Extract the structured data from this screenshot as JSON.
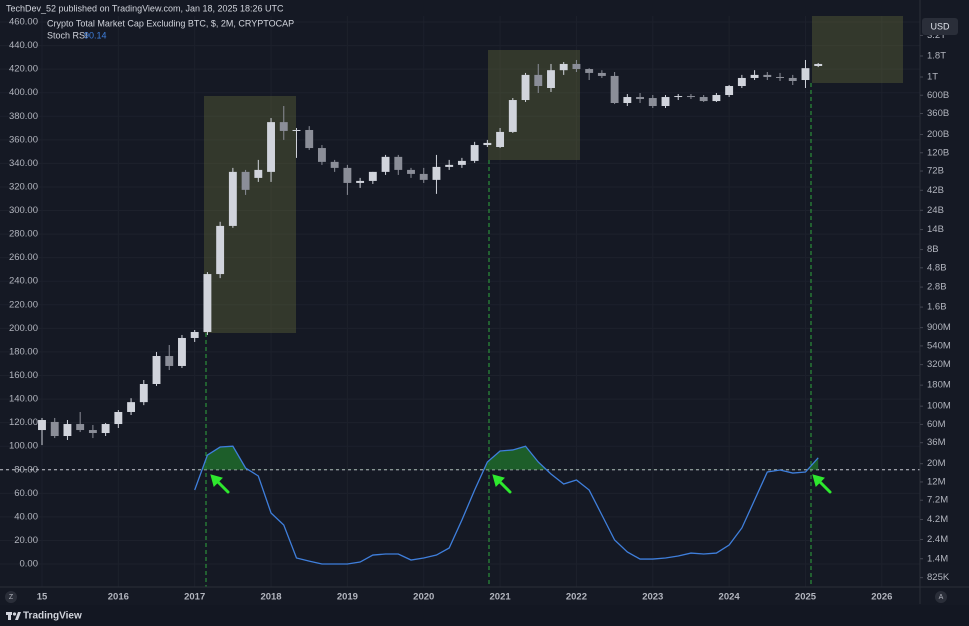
{
  "header": {
    "published": "TechDev_52 published on TradingView.com, Jan 18, 2025 18:26 UTC"
  },
  "chart_data": {
    "type": "candlestick",
    "title": "Crypto Total Market Cap Excluding BTC, $, 2M, CRYPTOCAP",
    "currency": "USD",
    "x": [
      2015,
      2015.1667,
      2015.3333,
      2015.5,
      2015.6667,
      2015.8333,
      2016,
      2016.1667,
      2016.3333,
      2016.5,
      2016.6667,
      2016.8333,
      2017,
      2017.1667,
      2017.3333,
      2017.5,
      2017.6667,
      2017.8333,
      2018,
      2018.1667,
      2018.3333,
      2018.5,
      2018.6667,
      2018.8333,
      2019,
      2019.1667,
      2019.3333,
      2019.5,
      2019.6667,
      2019.8333,
      2020,
      2020.1667,
      2020.3333,
      2020.5,
      2020.6667,
      2020.8333,
      2021,
      2021.1667,
      2021.3333,
      2021.5,
      2021.6667,
      2021.8333,
      2022,
      2022.1667,
      2022.3333,
      2022.5,
      2022.6667,
      2022.8333,
      2023,
      2023.1667,
      2023.3333,
      2023.5,
      2023.6667,
      2023.8333,
      2024,
      2024.1667,
      2024.3333,
      2024.5,
      2024.6667,
      2024.8333,
      2025,
      2025.1667
    ],
    "open": [
      51300000.0,
      64300000.0,
      43400000.0,
      60700000.0,
      51300000.0,
      47200000.0,
      60700000.0,
      85000000.0,
      112000000.0,
      186000000.0,
      407000000.0,
      308000000.0,
      674000000.0,
      797000000.0,
      4030000000.0,
      15500000000.0,
      70300000000.0,
      59400000000.0,
      70300000000.0,
      283000000000.0,
      221000000000.0,
      227000000000.0,
      137000000000.0,
      93000000000.0,
      78600000000.0,
      51600000000.0,
      54600000000.0,
      70300000000.0,
      107000000000.0,
      74300000000.0,
      66400000000.0,
      56200000000.0,
      80800000000.0,
      85500000000.0,
      95600000000.0,
      149000000000.0,
      141000000000.0,
      215000000000.0,
      525000000000.0,
      1060000000000.0,
      735000000000.0,
      1210000000000.0,
      1440000000000.0,
      1250000000000.0,
      1120000000000.0,
      1030000000000.0,
      483000000000.0,
      571000000000.0,
      555000000000.0,
      444000000000.0,
      571000000000.0,
      587000000000.0,
      571000000000.0,
      510000000000.0,
      604000000000.0,
      777000000000.0,
      973000000000.0,
      1060000000000.0,
      1000000000000.0,
      973000000000.0,
      919000000000.0,
      1360000000000.0
    ],
    "high": [
      71900000.0,
      71900000.0,
      67900000.0,
      85000000.0,
      59100000.0,
      62500000.0,
      89800000.0,
      125000000.0,
      208000000.0,
      456000000.0,
      554000000.0,
      733000000.0,
      843000000.0,
      4260000000.0,
      17400000000.0,
      78600000000.0,
      74300000000.0,
      98300000000.0,
      317000000000.0,
      444000000000.0,
      240000000000.0,
      253000000000.0,
      149000000000.0,
      98300000000.0,
      85500000000.0,
      59400000000.0,
      70300000000.0,
      113000000000.0,
      113000000000.0,
      78600000000.0,
      78600000000.0,
      113000000000.0,
      98300000000.0,
      104000000000.0,
      163000000000.0,
      172000000000.0,
      240000000000.0,
      555000000000.0,
      1120000000000.0,
      1440000000000.0,
      1440000000000.0,
      1520000000000.0,
      1610000000000.0,
      1280000000000.0,
      1210000000000.0,
      1150000000000.0,
      621000000000.0,
      639000000000.0,
      604000000000.0,
      604000000000.0,
      621000000000.0,
      621000000000.0,
      604000000000.0,
      639000000000.0,
      800000000000.0,
      1060000000000.0,
      1210000000000.0,
      1150000000000.0,
      1120000000000.0,
      1060000000000.0,
      1610000000000.0,
      1480000000000.0
    ],
    "low": [
      33700000.0,
      41000000.0,
      38800000.0,
      48500000.0,
      41000000.0,
      43400000.0,
      54300000.0,
      78100000.0,
      103000000.0,
      176000000.0,
      275000000.0,
      291000000.0,
      603000000.0,
      733000000.0,
      3600000000.0,
      14700000000.0,
      36900000000.0,
      53100000000.0,
      53100000000.0,
      172000000000.0,
      104000000000.0,
      130000000000.0,
      85500000000.0,
      70300000000.0,
      36900000000.0,
      44900000000.0,
      50200000000.0,
      64600000000.0,
      64600000000.0,
      59400000000.0,
      51600000000.0,
      38000000000.0,
      74300000000.0,
      78600000000.0,
      90400000000.0,
      141000000000.0,
      137000000000.0,
      209000000000.0,
      497000000000.0,
      639000000000.0,
      657000000000.0,
      1060000000000.0,
      1150000000000.0,
      919000000000.0,
      973000000000.0,
      469000000000.0,
      444000000000.0,
      483000000000.0,
      420000000000.0,
      420000000000.0,
      525000000000.0,
      540000000000.0,
      497000000000.0,
      497000000000.0,
      571000000000.0,
      735000000000.0,
      919000000000.0,
      919000000000.0,
      894000000000.0,
      799000000000.0,
      735000000000.0,
      1320000000000.0
    ],
    "close": [
      67900000.0,
      43400000.0,
      60700000.0,
      51300000.0,
      47200000.0,
      60700000.0,
      85000000.0,
      112000000.0,
      186000000.0,
      407000000.0,
      308000000.0,
      674000000.0,
      797000000.0,
      4030000000.0,
      15500000000.0,
      70300000000.0,
      42500000000.0,
      74300000000.0,
      283000000000.0,
      221000000000.0,
      227000000000.0,
      137000000000.0,
      93000000000.0,
      78600000000.0,
      51600000000.0,
      54600000000.0,
      70300000000.0,
      107000000000.0,
      74300000000.0,
      66400000000.0,
      56200000000.0,
      80800000000.0,
      85500000000.0,
      95600000000.0,
      149000000000.0,
      158000000000.0,
      215000000000.0,
      525000000000.0,
      1060000000000.0,
      777000000000.0,
      1210000000000.0,
      1440000000000.0,
      1250000000000.0,
      1120000000000.0,
      1030000000000.0,
      483000000000.0,
      571000000000.0,
      540000000000.0,
      444000000000.0,
      571000000000.0,
      587000000000.0,
      571000000000.0,
      510000000000.0,
      604000000000.0,
      777000000000.0,
      973000000000.0,
      1060000000000.0,
      1000000000000.0,
      973000000000.0,
      894000000000.0,
      1280000000000.0,
      1440000000000.0
    ],
    "up_color": "#d1d4dc",
    "down_color": "#8b8e98",
    "series": [
      {
        "name": "Stoch RSI",
        "color": "#3f7fdc",
        "axis": "y",
        "last_value_label": "90.14",
        "values": [
          null,
          null,
          null,
          null,
          null,
          null,
          null,
          null,
          null,
          null,
          null,
          null,
          62.8,
          92.5,
          99.3,
          100,
          81.5,
          74.7,
          43.3,
          33.1,
          5.1,
          2.5,
          0,
          0,
          0,
          1.7,
          7.6,
          8.5,
          8.5,
          3.4,
          5.1,
          7.6,
          13.6,
          37.4,
          62.8,
          86.6,
          95.9,
          96.8,
          100,
          86.6,
          76.4,
          67.9,
          71.3,
          62.8,
          41.6,
          20.4,
          10.2,
          4.2,
          4.2,
          5.1,
          6.8,
          9.3,
          8.5,
          9.3,
          16.1,
          30.6,
          54.3,
          78.1,
          79.8,
          77.2,
          78.1,
          90.14
        ]
      }
    ],
    "reference_line": 80,
    "fill_color": "#1f6b2c",
    "grid": true,
    "xlim": [
      2014.45,
      2026.5
    ],
    "xticks": [
      {
        "value": 2015,
        "label": "15"
      },
      2016,
      2017,
      2018,
      2019,
      2020,
      2021,
      2022,
      2023,
      2024,
      2025,
      2026
    ],
    "ylim": [
      -19.5,
      465.1
    ],
    "yticks": [
      {
        "value": 0,
        "label": "0.00"
      },
      {
        "value": 20,
        "label": "20.00"
      },
      {
        "value": 40,
        "label": "40.00"
      },
      {
        "value": 60,
        "label": "60.00"
      },
      {
        "value": 80,
        "label": "80.00"
      },
      {
        "value": 100,
        "label": "100.00"
      },
      {
        "value": 120,
        "label": "120.00"
      },
      {
        "value": 140,
        "label": "140.00"
      },
      {
        "value": 160,
        "label": "160.00"
      },
      {
        "value": 180,
        "label": "180.00"
      },
      {
        "value": 200,
        "label": "200.00"
      },
      {
        "value": 220,
        "label": "220.00"
      },
      {
        "value": 240,
        "label": "240.00"
      },
      {
        "value": 260,
        "label": "260.00"
      },
      {
        "value": 280,
        "label": "280.00"
      },
      {
        "value": 300,
        "label": "300.00"
      },
      {
        "value": 320,
        "label": "320.00"
      },
      {
        "value": 340,
        "label": "340.00"
      },
      {
        "value": 360,
        "label": "360.00"
      },
      {
        "value": 380,
        "label": "380.00"
      },
      {
        "value": 400,
        "label": "400.00"
      },
      {
        "value": 420,
        "label": "420.00"
      },
      {
        "value": 440,
        "label": "440.00"
      },
      {
        "value": 460,
        "label": "460.00"
      }
    ],
    "y2scale": "log",
    "y2lim": [
      635000,
      5510000000000
    ],
    "y2ticks": [
      {
        "value": 3200000000000,
        "label": "3.2T"
      },
      {
        "value": 1800000000000,
        "label": "1.8T"
      },
      {
        "value": 1000000000000,
        "label": "1T"
      },
      {
        "value": 600000000000,
        "label": "600B"
      },
      {
        "value": 360000000000,
        "label": "360B"
      },
      {
        "value": 200000000000,
        "label": "200B"
      },
      {
        "value": 120000000000,
        "label": "120B"
      },
      {
        "value": 72000000000,
        "label": "72B"
      },
      {
        "value": 42000000000,
        "label": "42B"
      },
      {
        "value": 24000000000,
        "label": "24B"
      },
      {
        "value": 14000000000,
        "label": "14B"
      },
      {
        "value": 8000000000,
        "label": "8B"
      },
      {
        "value": 4800000000,
        "label": "4.8B"
      },
      {
        "value": 2800000000,
        "label": "2.8B"
      },
      {
        "value": 1600000000,
        "label": "1.6B"
      },
      {
        "value": 900000000,
        "label": "900M"
      },
      {
        "value": 540000000,
        "label": "540M"
      },
      {
        "value": 320000000,
        "label": "320M"
      },
      {
        "value": 180000000,
        "label": "180M"
      },
      {
        "value": 100000000,
        "label": "100M"
      },
      {
        "value": 60000000,
        "label": "60M"
      },
      {
        "value": 36000000,
        "label": "36M"
      },
      {
        "value": 20000000,
        "label": "20M"
      },
      {
        "value": 12000000,
        "label": "12M"
      },
      {
        "value": 7200000,
        "label": "7.2M"
      },
      {
        "value": 4200000,
        "label": "4.2M"
      },
      {
        "value": 2400000,
        "label": "2.4M"
      },
      {
        "value": 1400000,
        "label": "1.4M"
      },
      {
        "value": 825000,
        "label": "825K"
      }
    ]
  },
  "controls": {
    "zoom": "Z",
    "auto": "A"
  },
  "footer": {
    "brand": "TradingView"
  }
}
